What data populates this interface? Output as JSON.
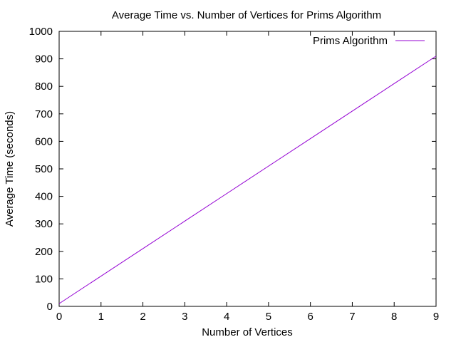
{
  "chart_data": {
    "type": "line",
    "title": "Average Time vs. Number of Vertices for Prims Algorithm",
    "xlabel": "Number of Vertices",
    "ylabel": "Average Time (seconds)",
    "xlim": [
      0,
      9
    ],
    "ylim": [
      0,
      1000
    ],
    "x_ticks": [
      0,
      1,
      2,
      3,
      4,
      5,
      6,
      7,
      8,
      9
    ],
    "y_ticks": [
      0,
      100,
      200,
      300,
      400,
      500,
      600,
      700,
      800,
      900,
      1000
    ],
    "grid": false,
    "legend_position": "top-right",
    "series": [
      {
        "name": "Prims Algorithm",
        "color": "#9400d3",
        "x": [
          0,
          1,
          2,
          3,
          4,
          5,
          6,
          7,
          8,
          9
        ],
        "y": [
          10,
          110,
          210,
          310,
          410,
          510,
          610,
          710,
          810,
          910
        ]
      }
    ]
  }
}
